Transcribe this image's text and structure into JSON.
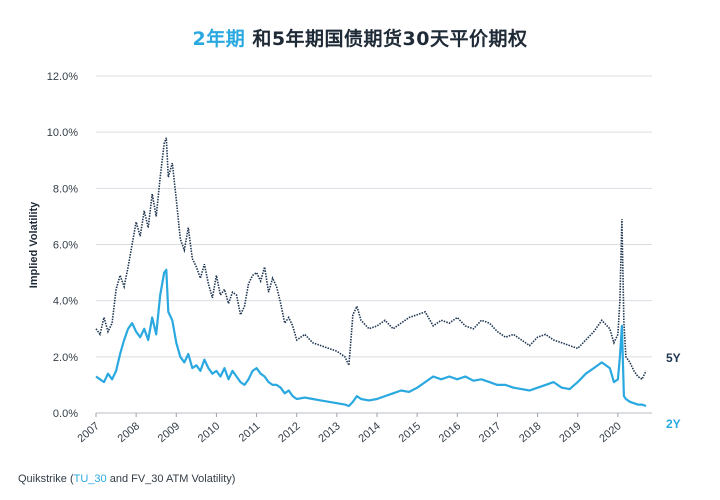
{
  "title": {
    "highlight": "2年期",
    "rest": " 和5年期国债期货30天平价期权"
  },
  "source": {
    "prefix": "Quikstrike (",
    "highlight": "TU_30",
    "suffix": " and FV_30 ATM Volatility)"
  },
  "chart_data": {
    "type": "line",
    "ylabel": "Implied Volatility",
    "ylim": [
      0,
      12
    ],
    "y_ticks": [
      "0.0%",
      "2.0%",
      "4.0%",
      "6.0%",
      "8.0%",
      "10.0%",
      "12.0%"
    ],
    "x_ticks": [
      "2007",
      "2008",
      "2009",
      "2010",
      "2011",
      "2012",
      "2013",
      "2014",
      "2015",
      "2016",
      "2017",
      "2018",
      "2019",
      "2020"
    ],
    "xlim": [
      2007.0,
      2020.85
    ],
    "grid": "horizontal",
    "colors": {
      "5Y": "#1f3550",
      "2Y": "#2aa8e0"
    },
    "series": [
      {
        "name": "5Y",
        "style": "dotted",
        "x": [
          2007.0,
          2007.1,
          2007.2,
          2007.3,
          2007.4,
          2007.5,
          2007.6,
          2007.7,
          2007.8,
          2007.9,
          2008.0,
          2008.1,
          2008.2,
          2008.3,
          2008.4,
          2008.5,
          2008.6,
          2008.7,
          2008.75,
          2008.8,
          2008.9,
          2009.0,
          2009.1,
          2009.2,
          2009.3,
          2009.4,
          2009.5,
          2009.6,
          2009.7,
          2009.8,
          2009.9,
          2010.0,
          2010.1,
          2010.2,
          2010.3,
          2010.4,
          2010.5,
          2010.6,
          2010.7,
          2010.8,
          2010.9,
          2011.0,
          2011.1,
          2011.2,
          2011.3,
          2011.4,
          2011.5,
          2011.6,
          2011.7,
          2011.8,
          2011.9,
          2012.0,
          2012.2,
          2012.4,
          2012.6,
          2012.8,
          2013.0,
          2013.2,
          2013.3,
          2013.4,
          2013.5,
          2013.6,
          2013.8,
          2014.0,
          2014.2,
          2014.4,
          2014.6,
          2014.8,
          2015.0,
          2015.2,
          2015.4,
          2015.6,
          2015.8,
          2016.0,
          2016.2,
          2016.4,
          2016.6,
          2016.8,
          2017.0,
          2017.2,
          2017.4,
          2017.6,
          2017.8,
          2018.0,
          2018.2,
          2018.4,
          2018.6,
          2018.8,
          2019.0,
          2019.2,
          2019.4,
          2019.6,
          2019.8,
          2019.9,
          2020.0,
          2020.05,
          2020.1,
          2020.15,
          2020.2,
          2020.3,
          2020.4,
          2020.5,
          2020.6,
          2020.7
        ],
        "values": [
          3.0,
          2.8,
          3.4,
          2.9,
          3.2,
          4.4,
          4.9,
          4.5,
          5.2,
          6.0,
          6.8,
          6.3,
          7.2,
          6.6,
          7.8,
          7.0,
          8.4,
          9.6,
          9.8,
          8.4,
          8.9,
          7.6,
          6.2,
          5.8,
          6.6,
          5.5,
          5.2,
          4.8,
          5.3,
          4.6,
          4.1,
          4.9,
          4.2,
          4.4,
          3.9,
          4.3,
          4.2,
          3.5,
          3.8,
          4.6,
          4.9,
          5.0,
          4.7,
          5.2,
          4.3,
          4.8,
          4.5,
          3.9,
          3.2,
          3.4,
          3.1,
          2.6,
          2.8,
          2.5,
          2.4,
          2.3,
          2.2,
          2.0,
          1.7,
          3.5,
          3.8,
          3.3,
          3.0,
          3.1,
          3.3,
          3.0,
          3.2,
          3.4,
          3.5,
          3.6,
          3.1,
          3.3,
          3.2,
          3.4,
          3.1,
          3.0,
          3.3,
          3.2,
          2.9,
          2.7,
          2.8,
          2.6,
          2.4,
          2.7,
          2.8,
          2.6,
          2.5,
          2.4,
          2.3,
          2.6,
          2.9,
          3.3,
          3.0,
          2.5,
          2.8,
          4.0,
          6.9,
          3.2,
          2.0,
          1.8,
          1.5,
          1.3,
          1.2,
          1.5
        ]
      },
      {
        "name": "2Y",
        "style": "solid",
        "x": [
          2007.0,
          2007.1,
          2007.2,
          2007.3,
          2007.4,
          2007.5,
          2007.6,
          2007.7,
          2007.8,
          2007.9,
          2008.0,
          2008.1,
          2008.2,
          2008.3,
          2008.4,
          2008.5,
          2008.6,
          2008.7,
          2008.75,
          2008.8,
          2008.9,
          2009.0,
          2009.1,
          2009.2,
          2009.3,
          2009.4,
          2009.5,
          2009.6,
          2009.7,
          2009.8,
          2009.9,
          2010.0,
          2010.1,
          2010.2,
          2010.3,
          2010.4,
          2010.5,
          2010.6,
          2010.7,
          2010.8,
          2010.9,
          2011.0,
          2011.1,
          2011.2,
          2011.3,
          2011.4,
          2011.5,
          2011.6,
          2011.7,
          2011.8,
          2011.9,
          2012.0,
          2012.2,
          2012.4,
          2012.6,
          2012.8,
          2013.0,
          2013.2,
          2013.3,
          2013.4,
          2013.5,
          2013.6,
          2013.8,
          2014.0,
          2014.2,
          2014.4,
          2014.6,
          2014.8,
          2015.0,
          2015.2,
          2015.4,
          2015.6,
          2015.8,
          2016.0,
          2016.2,
          2016.4,
          2016.6,
          2016.8,
          2017.0,
          2017.2,
          2017.4,
          2017.6,
          2017.8,
          2018.0,
          2018.2,
          2018.4,
          2018.6,
          2018.8,
          2019.0,
          2019.2,
          2019.4,
          2019.6,
          2019.8,
          2019.9,
          2020.0,
          2020.05,
          2020.1,
          2020.15,
          2020.2,
          2020.3,
          2020.4,
          2020.5,
          2020.6,
          2020.7
        ],
        "values": [
          1.3,
          1.2,
          1.1,
          1.4,
          1.2,
          1.5,
          2.1,
          2.6,
          3.0,
          3.2,
          2.9,
          2.7,
          3.0,
          2.6,
          3.4,
          2.8,
          4.2,
          5.0,
          5.1,
          3.6,
          3.3,
          2.5,
          2.0,
          1.8,
          2.1,
          1.6,
          1.7,
          1.5,
          1.9,
          1.6,
          1.4,
          1.5,
          1.3,
          1.6,
          1.2,
          1.5,
          1.3,
          1.1,
          1.0,
          1.2,
          1.5,
          1.6,
          1.4,
          1.3,
          1.1,
          1.0,
          1.0,
          0.9,
          0.7,
          0.8,
          0.6,
          0.5,
          0.55,
          0.5,
          0.45,
          0.4,
          0.35,
          0.3,
          0.25,
          0.4,
          0.6,
          0.5,
          0.45,
          0.5,
          0.6,
          0.7,
          0.8,
          0.75,
          0.9,
          1.1,
          1.3,
          1.2,
          1.3,
          1.2,
          1.3,
          1.15,
          1.2,
          1.1,
          1.0,
          1.0,
          0.9,
          0.85,
          0.8,
          0.9,
          1.0,
          1.1,
          0.9,
          0.85,
          1.1,
          1.4,
          1.6,
          1.8,
          1.6,
          1.1,
          1.2,
          2.0,
          3.1,
          0.6,
          0.5,
          0.4,
          0.35,
          0.3,
          0.3,
          0.25
        ]
      }
    ]
  }
}
